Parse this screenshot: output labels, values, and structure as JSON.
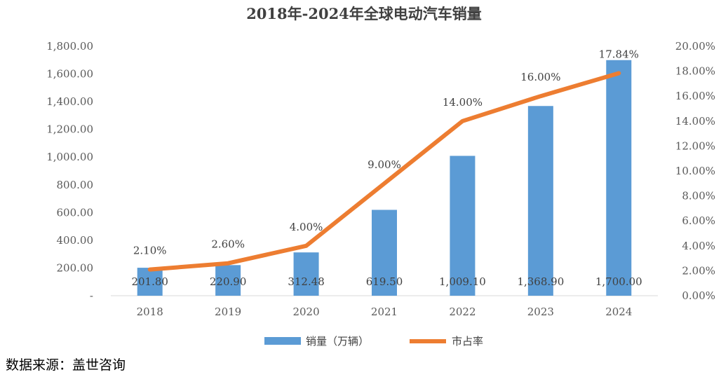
{
  "chart_data": {
    "type": "bar",
    "title": "2018年-2024年全球电动汽车销量",
    "categories": [
      "2018",
      "2019",
      "2020",
      "2021",
      "2022",
      "2023",
      "2024"
    ],
    "series": [
      {
        "name": "销量（万辆）",
        "type": "bar",
        "axis": "left",
        "color": "#5B9BD5",
        "values": [
          201.8,
          220.9,
          312.48,
          619.5,
          1009.1,
          1368.9,
          1700.0
        ],
        "labels": [
          "201.80",
          "220.90",
          "312.48",
          "619.50",
          "1,009.10",
          "1,368.90",
          "1,700.00"
        ]
      },
      {
        "name": "市占率",
        "type": "line",
        "axis": "right",
        "color": "#ED7D31",
        "values": [
          2.1,
          2.6,
          4.0,
          9.0,
          14.0,
          16.0,
          17.84
        ],
        "labels": [
          "2.10%",
          "2.60%",
          "4.00%",
          "9.00%",
          "14.00%",
          "16.00%",
          "17.84%"
        ]
      }
    ],
    "y_left": {
      "ylim": [
        0,
        1800
      ],
      "ticks": [
        0,
        200,
        400,
        600,
        800,
        1000,
        1200,
        1400,
        1600,
        1800
      ],
      "tick_labels": [
        "-",
        "200.00",
        "400.00",
        "600.00",
        "800.00",
        "1,000.00",
        "1,200.00",
        "1,400.00",
        "1,600.00",
        "1,800.00"
      ]
    },
    "y_right": {
      "ylim": [
        0,
        20
      ],
      "ticks": [
        0,
        2,
        4,
        6,
        8,
        10,
        12,
        14,
        16,
        18,
        20
      ],
      "tick_labels": [
        "0.00%",
        "2.00%",
        "4.00%",
        "6.00%",
        "8.00%",
        "10.00%",
        "12.00%",
        "14.00%",
        "16.00%",
        "18.00%",
        "20.00%"
      ]
    },
    "grid": false,
    "legend_position": "bottom"
  },
  "source_note": "数据来源：盖世咨询"
}
